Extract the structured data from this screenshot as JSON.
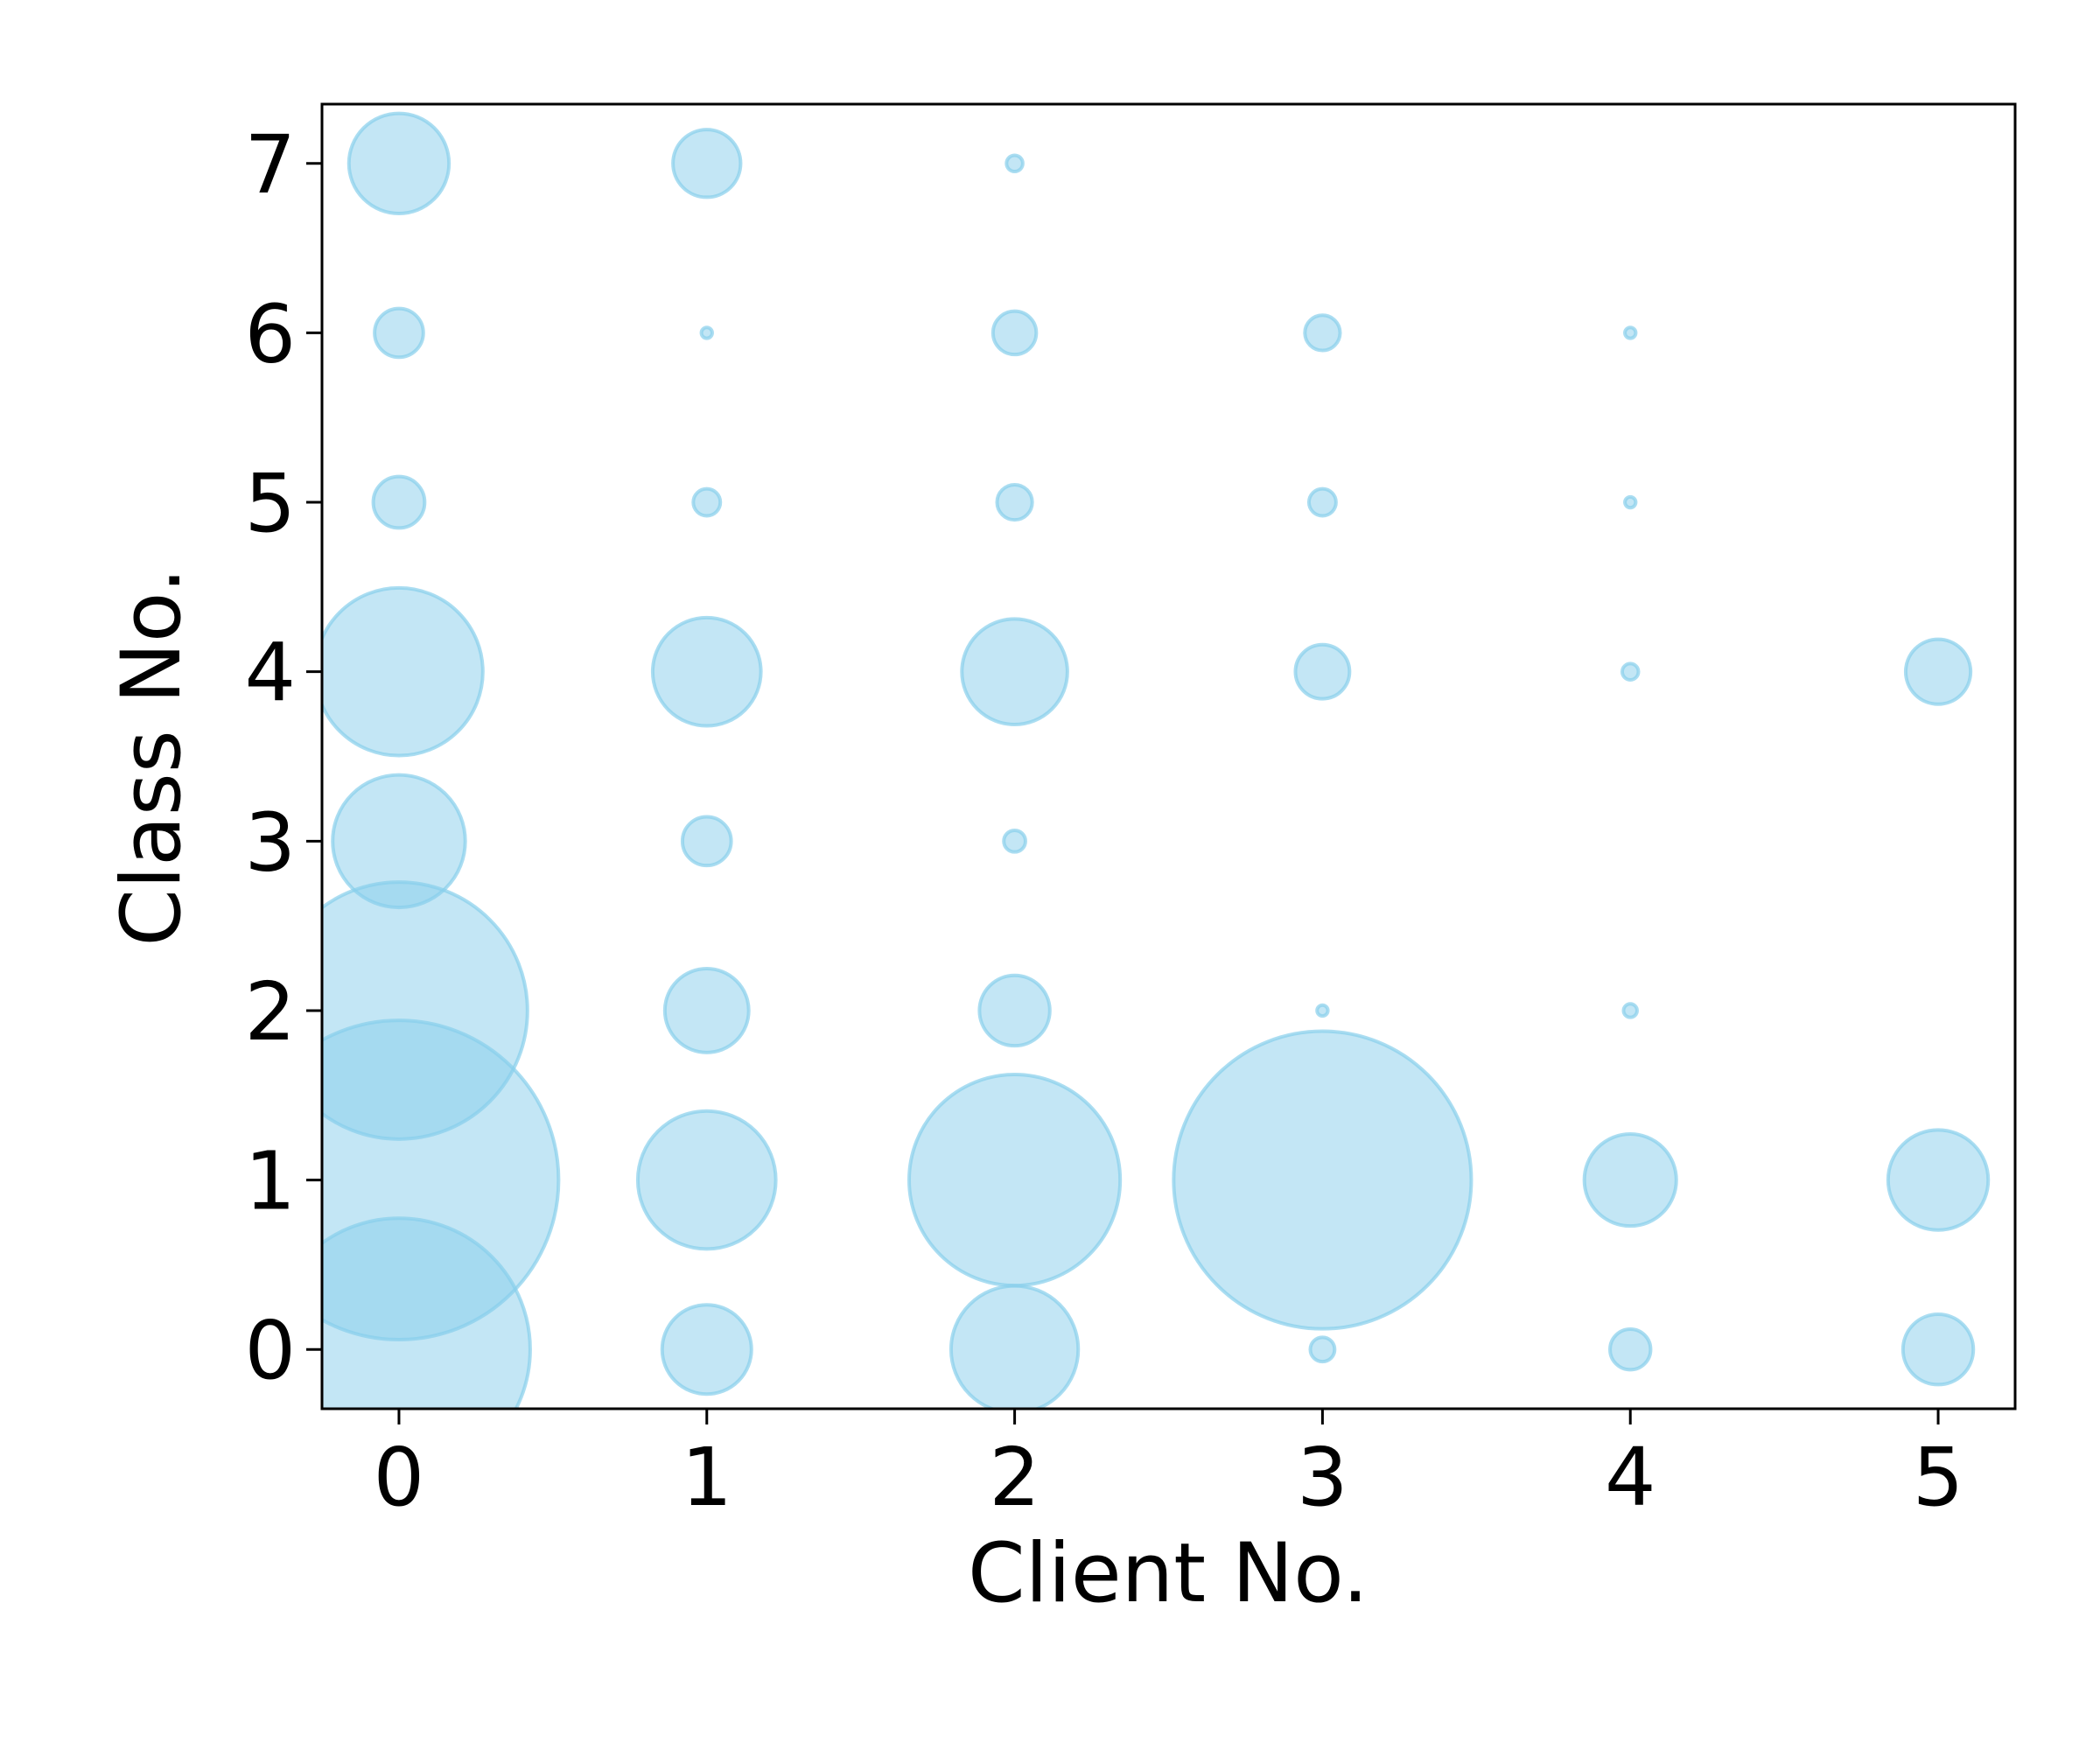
{
  "chart_data": {
    "type": "scatter",
    "x_label": "Client No.",
    "y_label": "Class No.",
    "xlim": [
      -0.25,
      5.25
    ],
    "ylim": [
      -0.35,
      7.35
    ],
    "xticks": [
      0,
      1,
      2,
      3,
      4,
      5
    ],
    "yticks": [
      0,
      1,
      2,
      3,
      4,
      5,
      6,
      7
    ],
    "series": [
      {
        "color": "#87ceeb",
        "alpha": 0.5,
        "x": [
          0,
          0,
          0,
          0,
          0,
          0,
          0,
          0,
          1,
          1,
          1,
          1,
          1,
          1,
          1,
          1,
          2,
          2,
          2,
          2,
          2,
          2,
          2,
          2,
          3,
          3,
          3,
          3,
          3,
          3,
          4,
          4,
          4,
          4,
          4,
          4,
          5,
          5,
          5
        ],
        "y": [
          7,
          6,
          5,
          4,
          3,
          2,
          1,
          0,
          7,
          6,
          5,
          4,
          3,
          2,
          1,
          0,
          7,
          6,
          5,
          4,
          3,
          2,
          1,
          0,
          6,
          5,
          4,
          2,
          1,
          0,
          6,
          5,
          4,
          2,
          1,
          0,
          4,
          1,
          0
        ],
        "sizes": [
          1369,
          324,
          361,
          3844,
          2401,
          9025,
          13924,
          9409,
          625,
          16,
          100,
          1600,
          324,
          961,
          2601,
          1089,
          36,
          256,
          169,
          1521,
          64,
          676,
          6084,
          2209,
          169,
          100,
          400,
          16,
          12100,
          81,
          16,
          16,
          36,
          25,
          1156,
          225,
          576,
          1369,
          676
        ]
      }
    ]
  }
}
